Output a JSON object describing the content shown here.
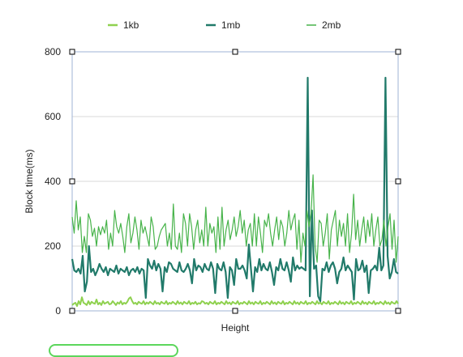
{
  "chart_data": {
    "type": "line",
    "xlabel": "Height",
    "ylabel": "Block time(ms)",
    "ylim": [
      0,
      800
    ],
    "yticks": [
      0,
      200,
      400,
      600,
      800
    ],
    "grid": true,
    "legend_position": "top",
    "series": [
      {
        "name": "1kb",
        "color": "#8fd14f",
        "values": [
          18,
          22,
          25,
          15,
          30,
          20,
          42,
          25,
          22,
          18,
          30,
          20,
          28,
          24,
          22,
          35,
          20,
          25,
          18,
          30,
          22,
          25,
          28,
          20,
          22,
          30,
          24,
          18,
          26,
          22,
          30,
          20,
          25,
          22,
          28,
          38,
          42,
          30,
          22,
          25,
          20,
          28,
          24,
          22,
          30,
          20,
          26,
          22,
          28,
          24,
          20,
          30,
          22,
          25,
          20,
          28,
          24,
          22,
          30,
          20,
          25,
          22,
          28,
          24,
          20,
          30,
          22,
          26,
          20,
          28,
          24,
          22,
          30,
          20,
          25,
          22,
          28,
          20,
          24,
          22,
          30,
          28,
          22,
          25,
          20,
          28,
          24,
          22,
          30,
          20,
          25,
          22,
          28,
          24,
          20,
          30,
          22,
          26,
          20,
          28,
          24,
          22,
          30,
          20,
          25,
          22,
          28,
          24,
          20,
          30,
          22,
          26,
          20,
          28,
          24,
          22,
          30,
          20,
          25,
          22,
          28,
          24,
          20,
          30,
          22,
          26,
          20,
          28,
          24,
          22,
          30,
          20,
          25,
          22,
          28,
          24,
          20,
          30,
          22,
          26,
          20,
          28,
          24,
          22,
          30,
          20,
          25,
          22,
          28,
          24,
          20,
          30,
          22,
          26,
          20,
          28,
          24,
          22,
          30,
          20,
          25,
          22,
          28,
          24,
          20,
          30,
          22,
          26,
          20,
          28,
          24,
          22,
          30,
          20,
          25,
          22,
          28,
          24,
          20,
          30,
          22,
          26,
          20,
          28,
          24,
          22,
          30,
          20,
          25,
          22,
          28,
          24,
          20,
          30,
          22,
          26,
          20,
          28,
          24,
          22,
          30,
          22
        ]
      },
      {
        "name": "1mb",
        "color": "#217a6a",
        "values": [
          160,
          125,
          120,
          130,
          115,
          170,
          60,
          90,
          200,
          120,
          130,
          110,
          125,
          145,
          130,
          120,
          135,
          110,
          130,
          125,
          120,
          140,
          115,
          130,
          125,
          120,
          135,
          110,
          125,
          130,
          120,
          135,
          115,
          130,
          125,
          40,
          160,
          140,
          130,
          155,
          125,
          145,
          130,
          60,
          135,
          120,
          150,
          145,
          130,
          125,
          120,
          150,
          125,
          120,
          130,
          145,
          125,
          85,
          160,
          125,
          140,
          135,
          120,
          145,
          130,
          125,
          150,
          130,
          55,
          145,
          130,
          125,
          150,
          120,
          40,
          135,
          125,
          80,
          160,
          130,
          130,
          140,
          125,
          100,
          205,
          130,
          60,
          135,
          120,
          160,
          125,
          145,
          130,
          125,
          150,
          120,
          80,
          135,
          125,
          160,
          130,
          125,
          150,
          125,
          90,
          165,
          125,
          140,
          130,
          135,
          130,
          125,
          720,
          45,
          310,
          130,
          140,
          45,
          30,
          130,
          125,
          150,
          120,
          140,
          150,
          130,
          85,
          120,
          130,
          165,
          125,
          140,
          130,
          120,
          35,
          160,
          125,
          130,
          155,
          120,
          140,
          55,
          125,
          130,
          140,
          125,
          195,
          125,
          140,
          720,
          170,
          100,
          120,
          160,
          120,
          115
        ]
      },
      {
        "name": "2mb",
        "color": "#47b34a",
        "values": [
          290,
          240,
          340,
          250,
          290,
          180,
          230,
          180,
          300,
          280,
          230,
          255,
          200,
          260,
          235,
          260,
          240,
          280,
          190,
          240,
          200,
          310,
          260,
          240,
          270,
          230,
          180,
          260,
          300,
          210,
          240,
          290,
          250,
          190,
          280,
          240,
          260,
          230,
          200,
          290,
          260,
          190,
          200,
          230,
          250,
          260,
          270,
          200,
          240,
          190,
          330,
          200,
          190,
          240,
          180,
          300,
          270,
          200,
          300,
          260,
          190,
          250,
          280,
          210,
          250,
          200,
          320,
          200,
          270,
          240,
          260,
          180,
          290,
          190,
          320,
          200,
          250,
          280,
          220,
          250,
          290,
          230,
          260,
          310,
          240,
          280,
          200,
          250,
          270,
          200,
          300,
          200,
          290,
          240,
          180,
          280,
          260,
          300,
          240,
          200,
          250,
          290,
          220,
          280,
          260,
          200,
          240,
          310,
          250,
          280,
          300,
          190,
          280,
          150,
          240,
          200,
          310,
          260,
          300,
          420,
          200,
          150,
          280,
          270,
          200,
          240,
          300,
          160,
          250,
          280,
          310,
          200,
          280,
          230,
          270,
          200,
          300,
          180,
          240,
          360,
          220,
          280,
          200,
          250,
          290,
          210,
          280,
          230,
          300,
          200,
          250,
          290,
          200,
          220,
          280,
          200,
          260,
          300,
          190,
          280,
          150,
          230
        ]
      }
    ]
  }
}
